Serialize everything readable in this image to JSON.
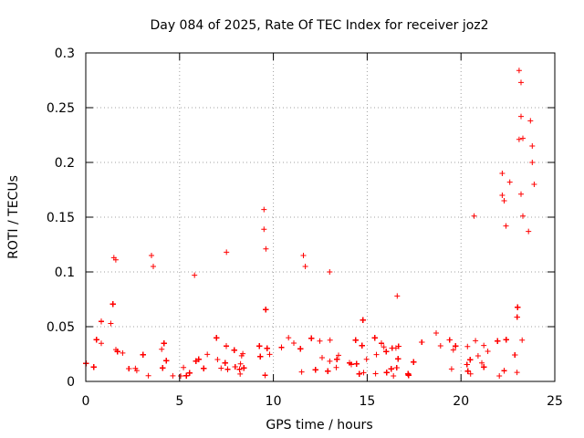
{
  "chart_data": {
    "type": "scatter",
    "title": "Day 084 of 2025, Rate Of TEC Index for receiver joz2",
    "xlabel": "GPS time / hours",
    "ylabel": "ROTI / TECUs",
    "xlim": [
      0,
      25
    ],
    "ylim": [
      0,
      0.3
    ],
    "xticks": [
      0,
      5,
      10,
      15,
      20,
      25
    ],
    "xtick_labels": [
      "0",
      "5",
      "10",
      "15",
      "20",
      "25"
    ],
    "yticks": [
      0,
      0.05,
      0.1,
      0.15,
      0.2,
      0.25,
      0.3
    ],
    "ytick_labels": [
      "0",
      "0.05",
      "0.1",
      "0.15",
      "0.2",
      "0.25",
      "0.3"
    ],
    "grid": true,
    "marker": "+",
    "color": "#ff0000",
    "series": [
      {
        "name": "ROTI",
        "x_range": [
          0,
          24
        ],
        "typical_band": [
          0.005,
          0.04
        ],
        "notable_points": [
          {
            "x": 1.5,
            "y": 0.113
          },
          {
            "x": 1.6,
            "y": 0.111
          },
          {
            "x": 3.5,
            "y": 0.115
          },
          {
            "x": 3.6,
            "y": 0.105
          },
          {
            "x": 5.8,
            "y": 0.097
          },
          {
            "x": 7.5,
            "y": 0.118
          },
          {
            "x": 9.5,
            "y": 0.157
          },
          {
            "x": 9.5,
            "y": 0.139
          },
          {
            "x": 9.6,
            "y": 0.121
          },
          {
            "x": 11.6,
            "y": 0.115
          },
          {
            "x": 11.7,
            "y": 0.105
          },
          {
            "x": 13.0,
            "y": 0.1
          },
          {
            "x": 16.6,
            "y": 0.078
          },
          {
            "x": 20.7,
            "y": 0.151
          },
          {
            "x": 22.2,
            "y": 0.19
          },
          {
            "x": 22.2,
            "y": 0.17
          },
          {
            "x": 22.3,
            "y": 0.165
          },
          {
            "x": 22.4,
            "y": 0.142
          },
          {
            "x": 22.6,
            "y": 0.182
          },
          {
            "x": 23.1,
            "y": 0.284
          },
          {
            "x": 23.2,
            "y": 0.273
          },
          {
            "x": 23.2,
            "y": 0.242
          },
          {
            "x": 23.3,
            "y": 0.222
          },
          {
            "x": 23.1,
            "y": 0.221
          },
          {
            "x": 23.2,
            "y": 0.171
          },
          {
            "x": 23.3,
            "y": 0.151
          },
          {
            "x": 23.7,
            "y": 0.238
          },
          {
            "x": 23.8,
            "y": 0.215
          },
          {
            "x": 23.8,
            "y": 0.2
          },
          {
            "x": 23.9,
            "y": 0.18
          },
          {
            "x": 23.6,
            "y": 0.137
          }
        ]
      }
    ]
  }
}
